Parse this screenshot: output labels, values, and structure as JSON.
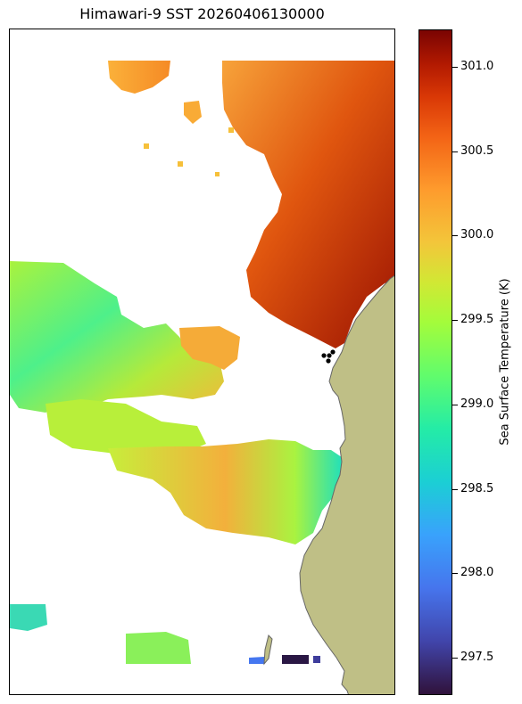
{
  "figure": {
    "title": "Himawari-9 SST 20260406130000"
  },
  "colorbar": {
    "label": "Sea Surface Temperature (K)",
    "ticks": [
      "297.5",
      "298.0",
      "298.5",
      "299.0",
      "299.5",
      "300.0",
      "300.5",
      "301.0"
    ],
    "range_k": [
      297.28,
      301.22
    ],
    "colormap": "turbo"
  },
  "map": {
    "land_color": "#bfbf86",
    "coastline_color": "#666666",
    "no_data_color": "#ffffff",
    "markers": {
      "count": 4,
      "color": "#000000"
    },
    "regions": {
      "north_east_warm": {
        "min_k": 300.0,
        "max_k": 301.1
      },
      "north_strip": {
        "min_k": 299.8,
        "max_k": 300.3
      },
      "central_west": {
        "min_k": 298.7,
        "max_k": 299.9
      },
      "southern_band": {
        "min_k": 298.5,
        "max_k": 299.8
      },
      "south_west_patch": {
        "min_k": 298.6,
        "max_k": 299.2
      },
      "bottom_edge_cold": {
        "min_k": 297.3,
        "max_k": 298.3
      }
    }
  }
}
